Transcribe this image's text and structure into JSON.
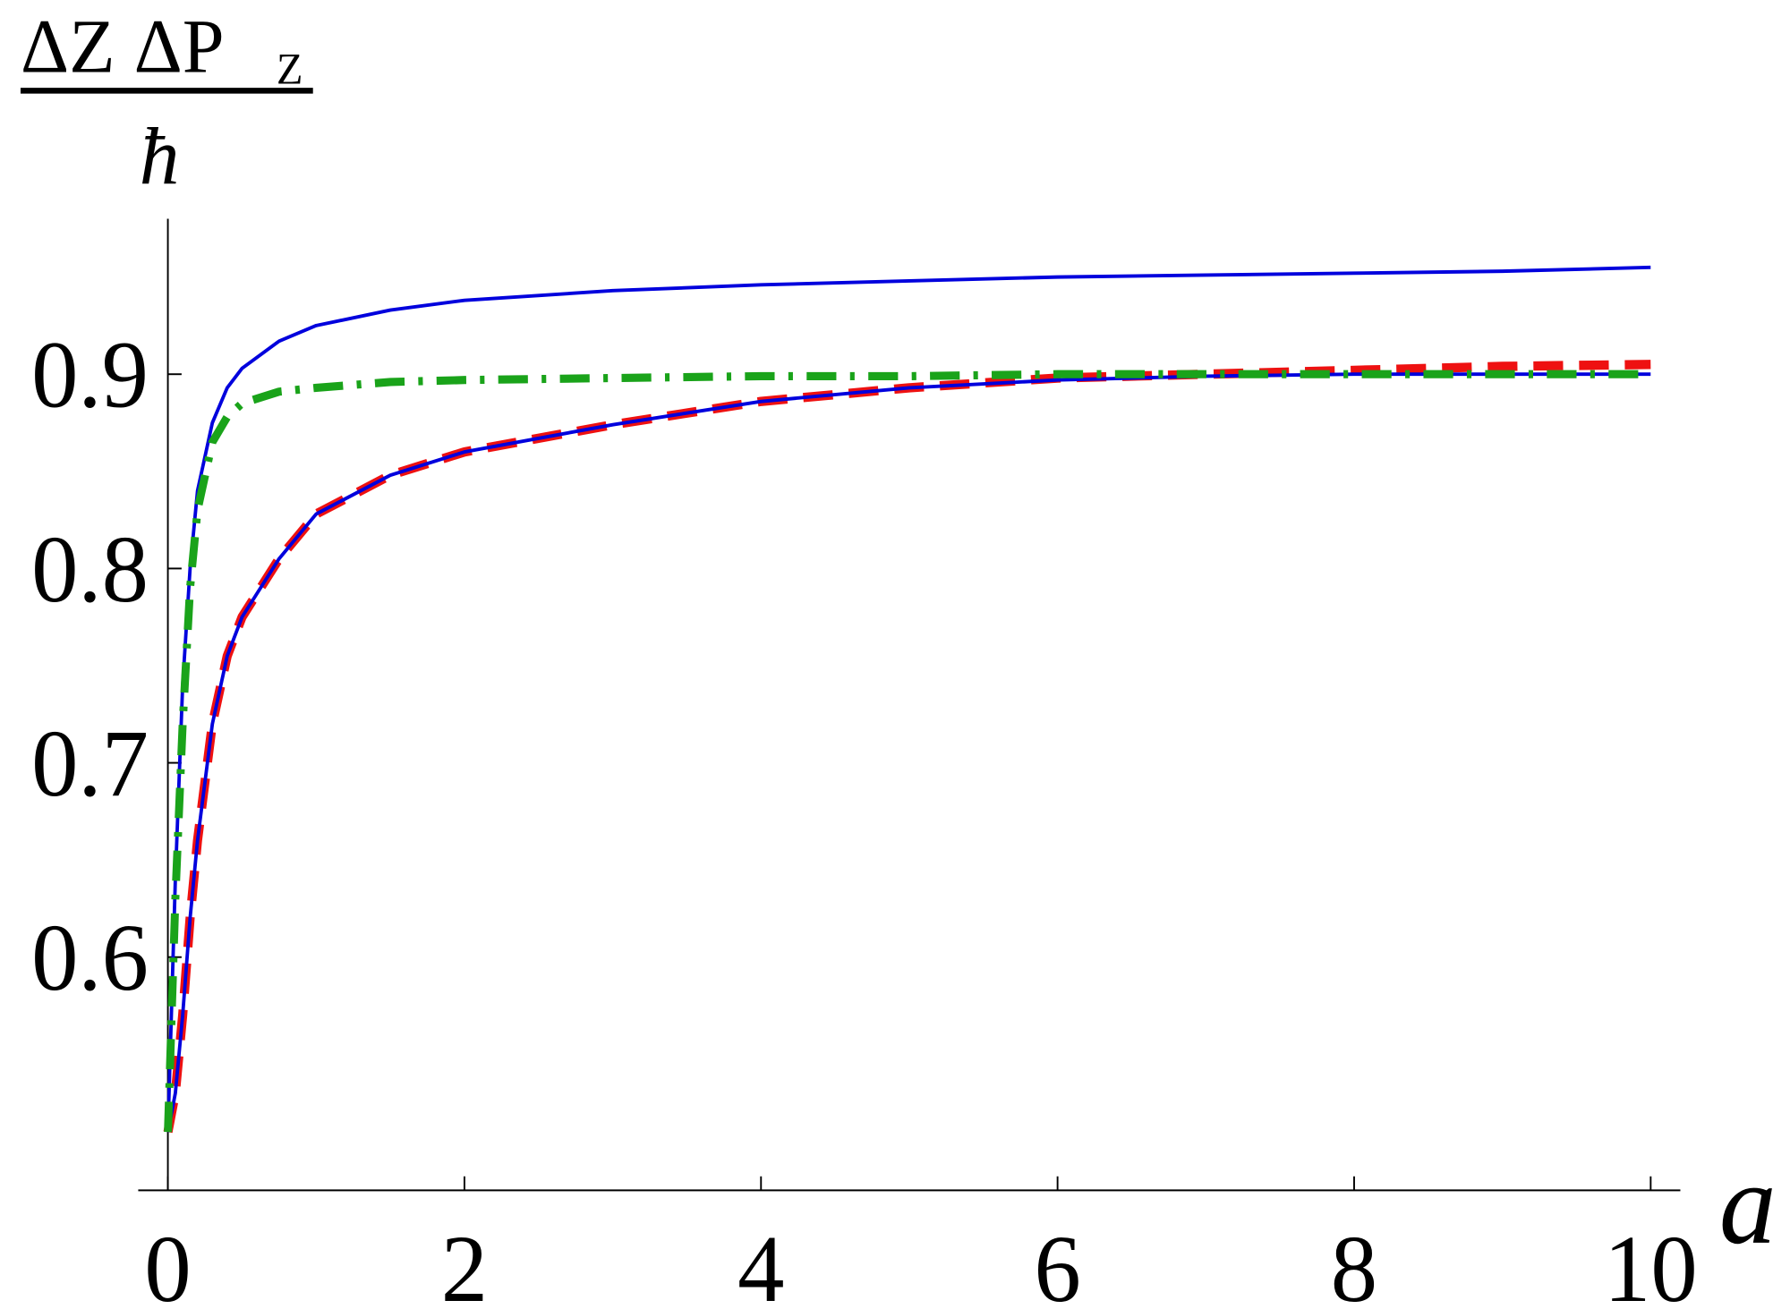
{
  "chart_data": {
    "type": "line",
    "ylabel_numerator": "ΔZ ΔP",
    "ylabel_subscript": "Z",
    "ylabel_denominator": "ħ",
    "xlabel": "a",
    "x": [
      0,
      0.05,
      0.1,
      0.15,
      0.2,
      0.3,
      0.4,
      0.5,
      0.75,
      1,
      1.5,
      2,
      3,
      4,
      5,
      6,
      7,
      8,
      9,
      10
    ],
    "series": [
      {
        "color": "#0000dd",
        "style": "solid",
        "values": [
          0.51,
          0.64,
          0.74,
          0.8,
          0.84,
          0.875,
          0.893,
          0.903,
          0.917,
          0.925,
          0.933,
          0.938,
          0.943,
          0.946,
          0.948,
          0.95,
          0.951,
          0.952,
          0.953,
          0.955
        ]
      },
      {
        "color": "#ee1111",
        "style": "dashed",
        "values": [
          0.51,
          0.53,
          0.57,
          0.62,
          0.66,
          0.72,
          0.755,
          0.775,
          0.805,
          0.828,
          0.848,
          0.86,
          0.874,
          0.886,
          0.893,
          0.898,
          0.9,
          0.902,
          0.904,
          0.905
        ]
      },
      {
        "color": "#0000dd",
        "style": "solid",
        "values": [
          0.51,
          0.53,
          0.57,
          0.62,
          0.66,
          0.72,
          0.755,
          0.775,
          0.805,
          0.828,
          0.848,
          0.86,
          0.874,
          0.886,
          0.893,
          0.897,
          0.899,
          0.9,
          0.9,
          0.9
        ]
      },
      {
        "color": "#1aa31a",
        "style": "dashdot",
        "values": [
          0.51,
          0.63,
          0.72,
          0.79,
          0.83,
          0.865,
          0.878,
          0.885,
          0.891,
          0.893,
          0.896,
          0.897,
          0.898,
          0.899,
          0.899,
          0.9,
          0.9,
          0.9,
          0.9,
          0.9
        ]
      }
    ],
    "xlim": [
      -0.2,
      10.2
    ],
    "ylim": [
      0.48,
      0.98
    ],
    "xticks": [
      0,
      2,
      4,
      6,
      8,
      10
    ],
    "yticks": [
      0.6,
      0.7,
      0.8,
      0.9
    ]
  }
}
